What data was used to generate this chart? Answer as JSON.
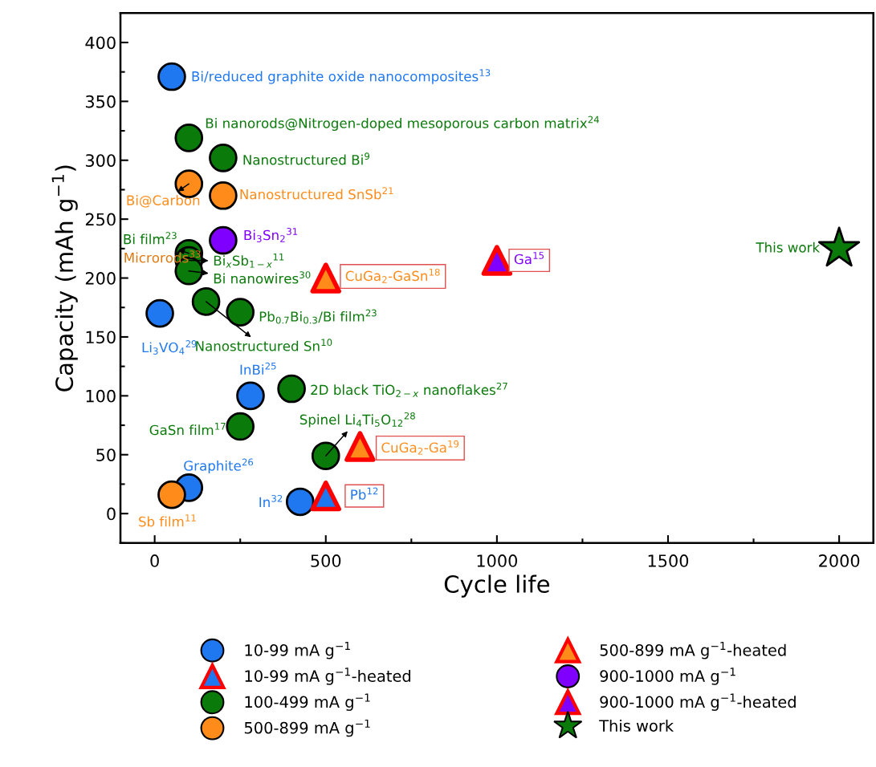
{
  "chart_data": {
    "type": "scatter",
    "xlabel": "Cycle life",
    "ylabel": "Capacity (mAh g$^{−1}$)",
    "xlim": [
      -100,
      2100
    ],
    "ylim": [
      -25,
      425
    ],
    "xticks": [
      0,
      {
        "value": 250,
        "label": null
      },
      500,
      {
        "value": 750,
        "label": null
      },
      1000,
      {
        "value": 1250,
        "label": null
      },
      1500,
      {
        "value": 1750,
        "label": null
      },
      2000
    ],
    "yticks": [
      {
        "value": -25,
        "label": null
      },
      0,
      {
        "value": 25,
        "label": null
      },
      50,
      {
        "value": 75,
        "label": null
      },
      100,
      {
        "value": 125,
        "label": null
      },
      150,
      {
        "value": 175,
        "label": null
      },
      200,
      {
        "value": 225,
        "label": null
      },
      250,
      {
        "value": 275,
        "label": null
      },
      300,
      {
        "value": 325,
        "label": null
      },
      350,
      {
        "value": 375,
        "label": null
      },
      400
    ],
    "legend": "bottom",
    "series": [
      {
        "name": "10-99 mA g$^{−1}$",
        "color": "#1f78f0",
        "marker": "circle",
        "x": [
          50,
          15,
          280,
          100,
          425
        ],
        "values": [
          371,
          170,
          100,
          22,
          10
        ]
      },
      {
        "name": "10-99 mA g$^{−1}$-heated",
        "color": "#1f78f0",
        "marker": "triangle",
        "x": [
          500
        ],
        "values": [
          15
        ]
      },
      {
        "name": "100-499 mA g$^{−1}$",
        "color": "#0a7a0a",
        "marker": "circle",
        "x": [
          100,
          200,
          100,
          100,
          100,
          150,
          250,
          400,
          250,
          500
        ],
        "values": [
          319,
          302,
          221,
          215,
          206,
          180,
          171,
          106,
          74,
          49
        ]
      },
      {
        "name": "500-899 mA g$^{−1}$",
        "color": "#ff8c1a",
        "marker": "circle",
        "x": [
          100,
          200,
          50
        ],
        "values": [
          280,
          270,
          16
        ]
      },
      {
        "name": "500-899 mA g$^{−1}$-heated",
        "color": "#ff8c1a",
        "marker": "triangle",
        "x": [
          500,
          600
        ],
        "values": [
          200,
          57
        ]
      },
      {
        "name": "900-1000 mA g$^{−1}$",
        "color": "#8000ff",
        "marker": "circle",
        "x": [
          200
        ],
        "values": [
          232
        ]
      },
      {
        "name": "900-1000 mA g$^{−1}$-heated",
        "color": "#8000ff",
        "marker": "triangle",
        "x": [
          1000
        ],
        "values": [
          215
        ]
      },
      {
        "name": "This work",
        "color": "#0a7a0a",
        "marker": "star",
        "x": [
          2000
        ],
        "values": [
          225
        ]
      }
    ],
    "annotations": [
      {
        "text": "Bi/reduced graphite oxide nanocomposites$^{13}$",
        "x": 50,
        "y": 371
      },
      {
        "text": "Bi nanorods@Nitrogen-doped mesoporous carbon matrix$^{24}$",
        "x": 100,
        "y": 319
      },
      {
        "text": "Nanostructured Bi$^{9}$",
        "x": 200,
        "y": 302
      },
      {
        "text": "Bi@Carbon",
        "x": 100,
        "y": 280
      },
      {
        "text": "Nanostructured SnSb$^{21}$",
        "x": 200,
        "y": 270
      },
      {
        "text": "Bi$_{3}$Sn$_{2}$$^{31}$",
        "x": 200,
        "y": 232
      },
      {
        "text": "Bi film$^{23}$",
        "x": 100,
        "y": 221
      },
      {
        "text": "Bi$_{x}$Sb$_{1−x}$$^{11}$",
        "x": 100,
        "y": 215
      },
      {
        "text": "Bi nanowires$^{30}$",
        "x": 100,
        "y": 206
      },
      {
        "text": "Nanostructured Sn$^{10}$",
        "x": 150,
        "y": 180
      },
      {
        "text": "Pb$_{0.7}$Bi$_{0.3}$/Bi film$^{23}$",
        "x": 250,
        "y": 171
      },
      {
        "text": "Li$_{3}$VO$_{4}$$^{29}$",
        "x": 15,
        "y": 170
      },
      {
        "text": "InBi$^{25}$",
        "x": 280,
        "y": 100
      },
      {
        "text": "2D black TiO$_{2−x}$ nanoflakes$^{27}$",
        "x": 400,
        "y": 106
      },
      {
        "text": "GaSn film$^{17}$",
        "x": 250,
        "y": 74
      },
      {
        "text": "Spinel Li$_{4}$Ti$_{5}$O$_{12}$$^{28}$",
        "x": 500,
        "y": 49
      },
      {
        "text": "Graphite$^{26}$",
        "x": 100,
        "y": 22
      },
      {
        "text": "Sb film$^{11}$",
        "x": 50,
        "y": 16
      },
      {
        "text": "In$^{32}$",
        "x": 425,
        "y": 10
      },
      {
        "text": "Pb$^{12}$",
        "x": 500,
        "y": 15
      },
      {
        "text": "CuGa$_{2}$-GaSn$^{18}$",
        "x": 500,
        "y": 200
      },
      {
        "text": "CuGa$_{2}$-Ga$^{19}$",
        "x": 600,
        "y": 57
      },
      {
        "text": "Ga$^{15}$",
        "x": 1000,
        "y": 215
      },
      {
        "text": "This work",
        "x": 2000,
        "y": 225
      },
      "Microrods$^{33}$"
    ]
  }
}
